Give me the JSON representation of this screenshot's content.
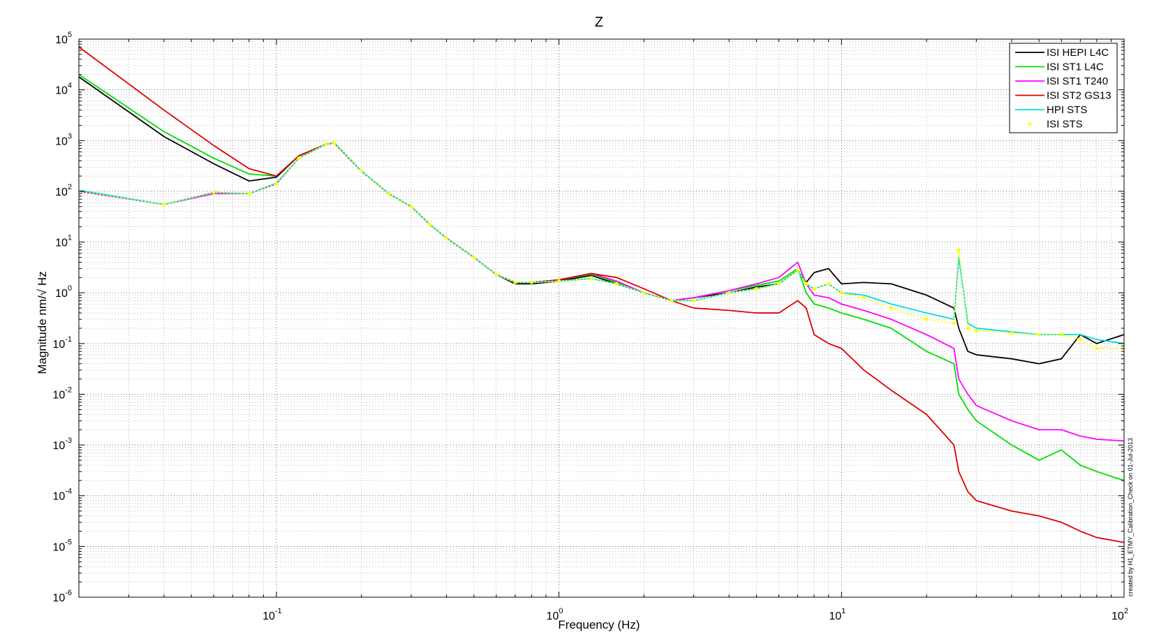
{
  "chart_data": {
    "type": "line",
    "title": "Z",
    "xlabel": "Frequency (Hz)",
    "ylabel": "Magnitude nm/√ Hz",
    "xscale": "log",
    "yscale": "log",
    "xlim": [
      0.02,
      100
    ],
    "ylim": [
      1e-06,
      100000.0
    ],
    "grid": true,
    "legend_position": "top-right",
    "x_tick_labels": [
      {
        "base": "10",
        "exp": "-1",
        "value": 0.1
      },
      {
        "base": "10",
        "exp": "0",
        "value": 1
      },
      {
        "base": "10",
        "exp": "1",
        "value": 10
      },
      {
        "base": "10",
        "exp": "2",
        "value": 100
      }
    ],
    "y_tick_labels": [
      {
        "base": "10",
        "exp": "5",
        "value": 100000.0
      },
      {
        "base": "10",
        "exp": "4",
        "value": 10000.0
      },
      {
        "base": "10",
        "exp": "3",
        "value": 1000.0
      },
      {
        "base": "10",
        "exp": "2",
        "value": 100.0
      },
      {
        "base": "10",
        "exp": "1",
        "value": 10.0
      },
      {
        "base": "10",
        "exp": "0",
        "value": 1
      },
      {
        "base": "10",
        "exp": "-1",
        "value": 0.1
      },
      {
        "base": "10",
        "exp": "-2",
        "value": 0.01
      },
      {
        "base": "10",
        "exp": "-3",
        "value": 0.001
      },
      {
        "base": "10",
        "exp": "-4",
        "value": 0.0001
      },
      {
        "base": "10",
        "exp": "-5",
        "value": 1e-05
      },
      {
        "base": "10",
        "exp": "-6",
        "value": 1e-06
      }
    ],
    "annotation": "created by H1_ETMY_Calibration_Check on 01-Jul-2013",
    "series": [
      {
        "name": "ISI HEPI L4C",
        "color": "#000000",
        "style": "line",
        "x": [
          0.02,
          0.04,
          0.06,
          0.08,
          0.1,
          0.12,
          0.15,
          0.16,
          0.2,
          0.25,
          0.3,
          0.35,
          0.4,
          0.5,
          0.6,
          0.7,
          0.8,
          1,
          1.3,
          1.6,
          2,
          2.5,
          3,
          4,
          5,
          6,
          7,
          7.5,
          8,
          9,
          10,
          12,
          15,
          20,
          25,
          26,
          28,
          30,
          40,
          50,
          60,
          70,
          80,
          100
        ],
        "y": [
          18000,
          1200,
          350,
          160,
          190,
          500,
          850,
          900,
          250,
          90,
          50,
          22,
          12,
          5,
          2.3,
          1.5,
          1.5,
          1.7,
          2.2,
          1.5,
          1.0,
          0.7,
          0.8,
          1.0,
          1.3,
          1.5,
          2.8,
          1.6,
          2.5,
          3.0,
          1.5,
          1.6,
          1.5,
          0.9,
          0.5,
          0.2,
          0.07,
          0.06,
          0.05,
          0.04,
          0.05,
          0.15,
          0.1,
          0.15
        ]
      },
      {
        "name": "ISI ST1 L4C",
        "color": "#00dd00",
        "style": "line",
        "x": [
          0.02,
          0.04,
          0.06,
          0.08,
          0.1,
          0.12,
          0.15,
          0.16,
          0.2,
          0.25,
          0.3,
          0.35,
          0.4,
          0.5,
          0.6,
          0.7,
          0.8,
          1,
          1.3,
          1.6,
          2,
          2.5,
          3,
          4,
          5,
          6,
          7,
          7.5,
          8,
          9,
          10,
          12,
          15,
          20,
          25,
          26,
          28,
          30,
          40,
          50,
          60,
          70,
          80,
          100
        ],
        "y": [
          20000,
          1500,
          450,
          220,
          200,
          500,
          850,
          900,
          250,
          90,
          50,
          22,
          12,
          5,
          2.3,
          1.6,
          1.6,
          1.8,
          2.3,
          1.6,
          1.0,
          0.7,
          0.8,
          1.1,
          1.4,
          1.7,
          3.0,
          1.0,
          0.6,
          0.5,
          0.4,
          0.3,
          0.2,
          0.07,
          0.04,
          0.01,
          0.005,
          0.003,
          0.001,
          0.0005,
          0.0008,
          0.0004,
          0.0003,
          0.0002
        ]
      },
      {
        "name": "ISI ST1 T240",
        "color": "#ff00ff",
        "style": "line",
        "x": [
          0.02,
          0.04,
          0.06,
          0.08,
          0.1,
          0.12,
          0.15,
          0.16,
          0.2,
          0.25,
          0.3,
          0.35,
          0.4,
          0.5,
          0.6,
          0.7,
          0.8,
          1,
          1.3,
          1.6,
          2,
          2.5,
          3,
          4,
          5,
          6,
          7,
          7.5,
          8,
          9,
          10,
          12,
          15,
          20,
          25,
          26,
          28,
          30,
          40,
          50,
          60,
          70,
          80,
          100
        ],
        "y": [
          100,
          55,
          90,
          90,
          140,
          450,
          850,
          900,
          250,
          90,
          50,
          22,
          12,
          5,
          2.3,
          1.6,
          1.6,
          1.8,
          2.4,
          1.7,
          1.0,
          0.7,
          0.8,
          1.1,
          1.5,
          2.0,
          4.0,
          1.5,
          0.9,
          0.8,
          0.6,
          0.45,
          0.3,
          0.15,
          0.08,
          0.02,
          0.01,
          0.006,
          0.003,
          0.002,
          0.002,
          0.0015,
          0.0013,
          0.0012
        ]
      },
      {
        "name": "ISI ST2 GS13",
        "color": "#dd0000",
        "style": "line",
        "x": [
          0.02,
          0.04,
          0.06,
          0.08,
          0.1,
          0.12,
          0.15,
          0.16,
          0.2,
          0.25,
          0.3,
          0.35,
          0.4,
          0.5,
          0.6,
          0.7,
          0.8,
          1,
          1.3,
          1.6,
          2,
          2.5,
          3,
          4,
          5,
          6,
          7,
          7.5,
          8,
          9,
          10,
          12,
          15,
          20,
          25,
          26,
          28,
          30,
          40,
          50,
          60,
          70,
          80,
          100
        ],
        "y": [
          70000,
          4000,
          800,
          280,
          200,
          500,
          850,
          900,
          250,
          90,
          50,
          22,
          12,
          5,
          2.3,
          1.6,
          1.6,
          1.8,
          2.4,
          2.0,
          1.2,
          0.7,
          0.5,
          0.45,
          0.4,
          0.4,
          0.7,
          0.5,
          0.15,
          0.1,
          0.08,
          0.03,
          0.012,
          0.004,
          0.001,
          0.0003,
          0.00012,
          8e-05,
          5e-05,
          4e-05,
          3e-05,
          2e-05,
          1.5e-05,
          1.2e-05
        ]
      },
      {
        "name": "HPI STS",
        "color": "#00dddd",
        "style": "line",
        "x": [
          0.02,
          0.04,
          0.06,
          0.08,
          0.1,
          0.12,
          0.15,
          0.16,
          0.2,
          0.25,
          0.3,
          0.35,
          0.4,
          0.5,
          0.6,
          0.7,
          0.8,
          1,
          1.3,
          1.6,
          2,
          2.5,
          3,
          4,
          5,
          6,
          7,
          7.5,
          8,
          9,
          10,
          12,
          15,
          20,
          25,
          26,
          28,
          30,
          40,
          50,
          60,
          70,
          80,
          100
        ],
        "y": [
          105,
          55,
          95,
          90,
          145,
          450,
          850,
          920,
          250,
          90,
          50,
          22,
          12,
          5,
          2.3,
          1.6,
          1.6,
          1.7,
          1.9,
          1.5,
          1.0,
          0.7,
          0.7,
          1.0,
          1.2,
          1.5,
          2.8,
          1.5,
          1.2,
          1.5,
          1.0,
          0.9,
          0.6,
          0.4,
          0.3,
          5.0,
          0.25,
          0.2,
          0.17,
          0.15,
          0.15,
          0.15,
          0.12,
          0.1
        ]
      },
      {
        "name": "ISI STS",
        "color": "#ffff00",
        "style": "markers",
        "x": [
          0.02,
          0.04,
          0.06,
          0.08,
          0.1,
          0.12,
          0.15,
          0.16,
          0.2,
          0.25,
          0.3,
          0.35,
          0.4,
          0.5,
          0.6,
          0.7,
          0.8,
          1,
          1.3,
          1.6,
          2,
          2.5,
          3,
          4,
          5,
          6,
          7,
          7.5,
          8,
          9,
          10,
          12,
          15,
          20,
          25,
          26,
          28,
          30,
          40,
          50,
          60,
          70,
          80,
          100
        ],
        "y": [
          100,
          55,
          95,
          90,
          140,
          450,
          850,
          900,
          250,
          90,
          50,
          22,
          12,
          5,
          2.3,
          1.6,
          1.6,
          1.7,
          1.9,
          1.5,
          1.0,
          0.7,
          0.7,
          1.0,
          1.2,
          1.5,
          2.8,
          1.5,
          1.2,
          1.5,
          1.0,
          0.8,
          0.5,
          0.3,
          0.25,
          7.0,
          0.2,
          0.18,
          0.16,
          0.15,
          0.15,
          0.12,
          0.08,
          0.08
        ]
      }
    ]
  }
}
